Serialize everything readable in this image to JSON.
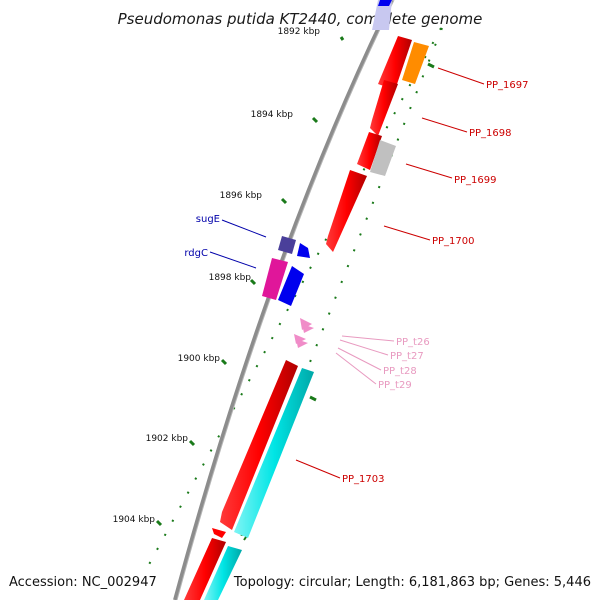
{
  "title": "Pseudomonas putida KT2440, complete genome",
  "footer": {
    "accession": "Accession: NC_002947",
    "summary": "Topology: circular; Length: 6,181,863 bp; Genes: 5,446"
  },
  "ticks": [
    "1892 kbp",
    "1894 kbp",
    "1896 kbp",
    "1898 kbp",
    "1900 kbp",
    "1902 kbp",
    "1904 kbp"
  ],
  "labels": {
    "pp1697": "PP_1697",
    "pp1698": "PP_1698",
    "pp1699": "PP_1699",
    "pp1700": "PP_1700",
    "sugE": "sugE",
    "rdgC": "rdgC",
    "pp_t26": "PP_t26",
    "pp_t27": "PP_t27",
    "pp_t28": "PP_t28",
    "pp_t29": "PP_t29",
    "pp1703": "PP_1703"
  },
  "colors": {
    "backbone": "#8c8c8c",
    "cds": "#ff0000",
    "label_red": "#cc0000",
    "label_blue": "#0000aa",
    "label_pink": "#e89ac0",
    "trna": "#f08cc8",
    "tick_green": "#1a7a1a",
    "cyan": "#00e5e5",
    "orange": "#ff8c00",
    "gray": "#c0c0c0",
    "navy": "#4a3f9a",
    "blue": "#0000ee",
    "magenta": "#e0169a",
    "lavender": "#c8c8f0"
  }
}
